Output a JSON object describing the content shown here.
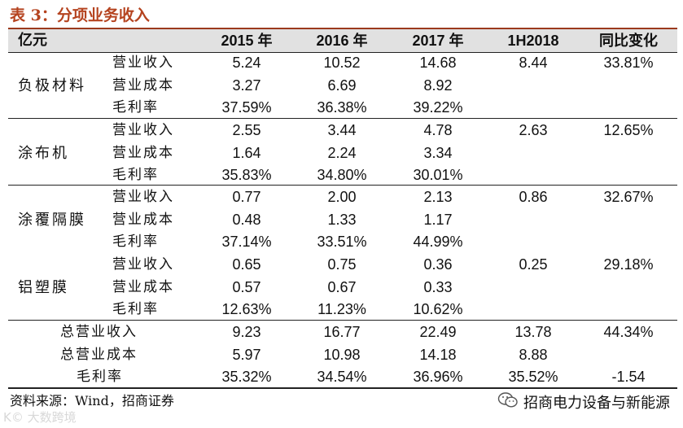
{
  "title": "表 3：分项业务收入",
  "table": {
    "headers": [
      "亿元",
      "2015 年",
      "2016 年",
      "2017 年",
      "1H2018",
      "同比变化"
    ],
    "groups": [
      {
        "name": "负极材料",
        "rows": [
          {
            "label": "营业收入",
            "values": [
              "5.24",
              "10.52",
              "14.68",
              "8.44",
              "33.81%"
            ]
          },
          {
            "label": "营业成本",
            "values": [
              "3.27",
              "6.69",
              "8.92",
              "",
              ""
            ]
          },
          {
            "label": "毛利率",
            "values": [
              "37.59%",
              "36.38%",
              "39.22%",
              "",
              ""
            ]
          }
        ]
      },
      {
        "name": "涂布机",
        "rows": [
          {
            "label": "营业收入",
            "values": [
              "2.55",
              "3.44",
              "4.78",
              "2.63",
              "12.65%"
            ]
          },
          {
            "label": "营业成本",
            "values": [
              "1.64",
              "2.24",
              "3.34",
              "",
              ""
            ]
          },
          {
            "label": "毛利率",
            "values": [
              "35.83%",
              "34.80%",
              "30.01%",
              "",
              ""
            ]
          }
        ]
      },
      {
        "name": "涂覆隔膜",
        "rows": [
          {
            "label": "营业收入",
            "values": [
              "0.77",
              "2.00",
              "2.13",
              "0.86",
              "32.67%"
            ]
          },
          {
            "label": "营业成本",
            "values": [
              "0.48",
              "1.33",
              "1.17",
              "",
              ""
            ]
          },
          {
            "label": "毛利率",
            "values": [
              "37.14%",
              "33.51%",
              "44.99%",
              "",
              ""
            ]
          }
        ]
      },
      {
        "name": "铝塑膜",
        "rows": [
          {
            "label": "营业收入",
            "values": [
              "0.65",
              "0.75",
              "0.36",
              "0.25",
              "29.18%"
            ]
          },
          {
            "label": "营业成本",
            "values": [
              "0.57",
              "0.67",
              "0.33",
              "",
              ""
            ]
          },
          {
            "label": "毛利率",
            "values": [
              "12.63%",
              "11.23%",
              "10.62%",
              "",
              ""
            ]
          }
        ]
      }
    ],
    "totals": [
      {
        "label": "总营业收入",
        "values": [
          "9.23",
          "16.77",
          "22.49",
          "13.78",
          "44.34%"
        ]
      },
      {
        "label": "总营业成本",
        "values": [
          "5.97",
          "10.98",
          "14.18",
          "8.88",
          ""
        ]
      },
      {
        "label": "毛利率",
        "values": [
          "35.32%",
          "34.54%",
          "36.96%",
          "35.52%",
          "-1.54"
        ]
      }
    ]
  },
  "source": "资料来源：Wind，招商证券",
  "brand": {
    "icon": "wechat-icon",
    "text": "招商电力设备与新能源"
  },
  "watermark": "K© 大数跨境",
  "colors": {
    "title": "#b5431f",
    "header_bg": "#e1e1e1",
    "rule": "#222222"
  }
}
